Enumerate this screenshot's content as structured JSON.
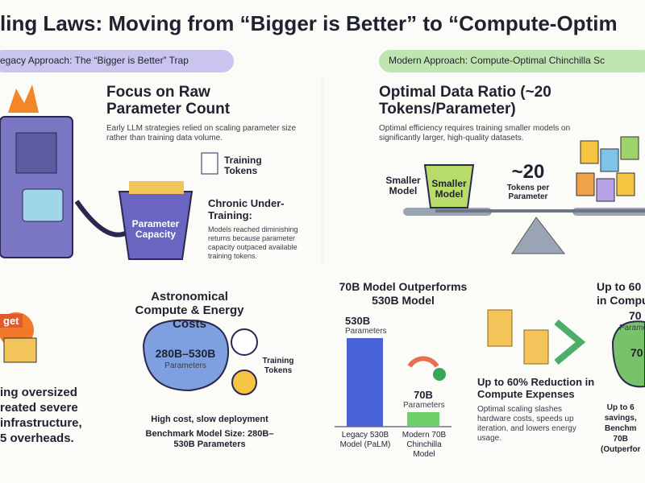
{
  "header": {
    "title": "ling Laws: Moving from “Bigger is Better” to “Compute-Optim"
  },
  "legacy": {
    "badge": "egacy Approach: The “Bigger is Better” Trap",
    "heading": "Focus on Raw Parameter Count",
    "description": "Early LLM strategies relied on scaling parameter size rather than training data volume.",
    "tokens_label": "Training Tokens",
    "bucket_label": "Parameter Capacity",
    "problem_title": "Chronic Under-Training:",
    "problem_text": "Models reached diminishing returns because parameter capacity outpaced available training tokens."
  },
  "modern": {
    "badge": "Modern Approach: Compute-Optimal Chinchilla Sc",
    "heading": "Optimal Data Ratio (~20 Tokens/Parameter)",
    "description": "Optimal efficiency requires training smaller models on significantly larger, high-quality datasets.",
    "model_label": "Smaller Model",
    "bucket_label": "Smaller Model",
    "ratio": "~20",
    "ratio_unit": "Tokens per Parameter"
  },
  "budget": {
    "tag": "get",
    "lines": [
      "ing oversized",
      "reated severe",
      "infrastructure,",
      "5 overheads."
    ]
  },
  "costs": {
    "heading": "Astronomical Compute & Energy Costs",
    "brain_value": "280B–530B",
    "brain_unit": "Parameters",
    "clock_label": "Training Tokens",
    "caption": "High cost, slow deployment",
    "benchmark": "Benchmark Model Size: 280B–530B Parameters"
  },
  "comparison": {
    "heading": "70B Model Outperforms 530B Model",
    "big_value": "530B",
    "big_unit": "Parameters",
    "small_value": "70B",
    "small_unit": "Parameters",
    "big_name": "Legacy 530B Model (PaLM)",
    "small_name": "Modern 70B Chinchilla Model"
  },
  "savings": {
    "heading": "Up to 60% Reduction in Compute Expenses",
    "text": "Optimal scaling slashes hardware costs, speeds up iteration, and lowers energy usage."
  },
  "edge": {
    "heading": [
      "Up to 60",
      "in Compu"
    ],
    "brain_a": "70",
    "brain_a_unit": "Paramete",
    "brain_b": "70",
    "lines": [
      "Up to 6",
      "savings, ",
      "Benchm",
      "70B",
      "(Outperfor"
    ]
  }
}
